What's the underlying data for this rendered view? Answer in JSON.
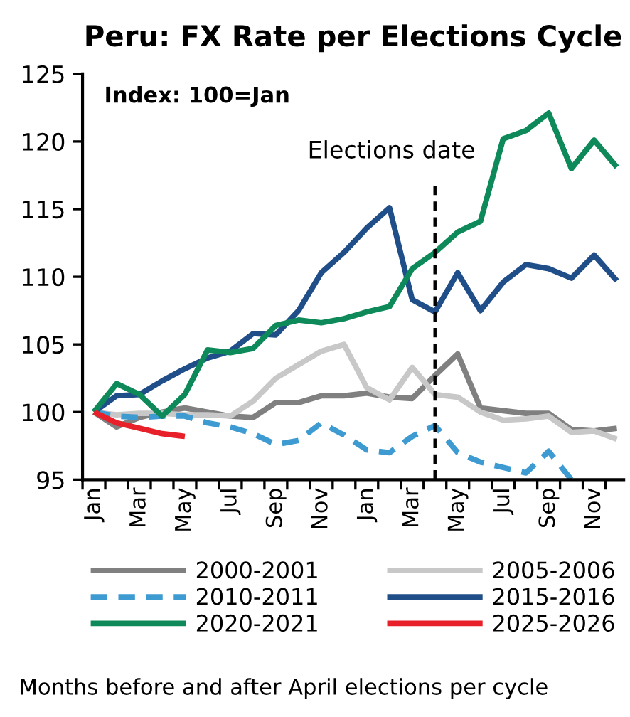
{
  "chart_data": {
    "type": "line",
    "title": "Peru: FX Rate per Elections Cycle",
    "annotations": [
      "Index: 100=Jan",
      "Months before and after April elections per cycle",
      "Elections date"
    ],
    "categories": [
      "Jan",
      null,
      "Mar",
      null,
      "May",
      null,
      "Jul",
      null,
      "Sep",
      null,
      "Nov",
      null,
      "Jan",
      null,
      "Mar",
      null,
      "May",
      null,
      "Jul",
      null,
      "Sep",
      null,
      "Nov",
      null
    ],
    "series": [
      {
        "name": "2000-2001",
        "color": "#808080",
        "values": [
          100,
          98.9,
          99.6,
          100.0,
          100.3,
          100.0,
          99.7,
          99.6,
          100.7,
          100.7,
          101.2,
          101.2,
          101.4,
          101.1,
          101.0,
          102.7,
          104.3,
          100.3,
          100.1,
          99.9,
          99.9,
          98.7,
          98.6,
          98.8
        ]
      },
      {
        "name": "2005-2006",
        "color": "#c8c8c8",
        "values": [
          100,
          99.8,
          99.9,
          99.9,
          99.8,
          99.8,
          99.7,
          100.8,
          102.5,
          103.5,
          104.5,
          105.0,
          101.8,
          100.9,
          103.3,
          101.3,
          101.1,
          100.0,
          99.4,
          99.5,
          99.7,
          98.5,
          98.6,
          98.0
        ]
      },
      {
        "name": "2010-2011",
        "color": "#3d9bd2",
        "line_style": "dashed",
        "values": [
          100,
          99.7,
          99.6,
          99.7,
          99.7,
          99.2,
          98.9,
          98.4,
          97.6,
          97.9,
          99.2,
          98.3,
          97.2,
          97.0,
          98.2,
          99.0,
          97.0,
          96.3,
          95.9,
          95.5,
          97.1,
          95.0,
          null,
          null
        ]
      },
      {
        "name": "2015-2016",
        "color": "#1f4e89",
        "values": [
          100,
          101.2,
          101.3,
          102.3,
          103.2,
          104.0,
          104.5,
          105.8,
          105.7,
          107.5,
          110.3,
          111.8,
          113.6,
          115.1,
          108.3,
          107.4,
          110.3,
          107.5,
          109.6,
          110.9,
          110.6,
          109.9,
          111.6,
          109.7
        ]
      },
      {
        "name": "2020-2021",
        "color": "#0e8a5a",
        "values": [
          100,
          102.1,
          101.3,
          99.7,
          101.3,
          104.6,
          104.4,
          104.7,
          106.4,
          106.8,
          106.6,
          106.9,
          107.4,
          107.8,
          110.6,
          111.8,
          113.3,
          114.1,
          120.2,
          120.8,
          122.1,
          118.0,
          120.1,
          118.1
        ]
      },
      {
        "name": "2025-2026",
        "color": "#e8202a",
        "values": [
          100,
          99.2,
          98.8,
          98.4,
          98.2,
          null,
          null,
          null,
          null,
          null,
          null,
          null,
          null,
          null,
          null,
          null,
          null,
          null,
          null,
          null,
          null,
          null,
          null,
          null
        ]
      }
    ],
    "ylim": [
      95,
      125
    ],
    "yticks": [
      95,
      100,
      105,
      110,
      115,
      120,
      125
    ],
    "legend": "bottom",
    "line_style": "solid",
    "marker": "none"
  }
}
